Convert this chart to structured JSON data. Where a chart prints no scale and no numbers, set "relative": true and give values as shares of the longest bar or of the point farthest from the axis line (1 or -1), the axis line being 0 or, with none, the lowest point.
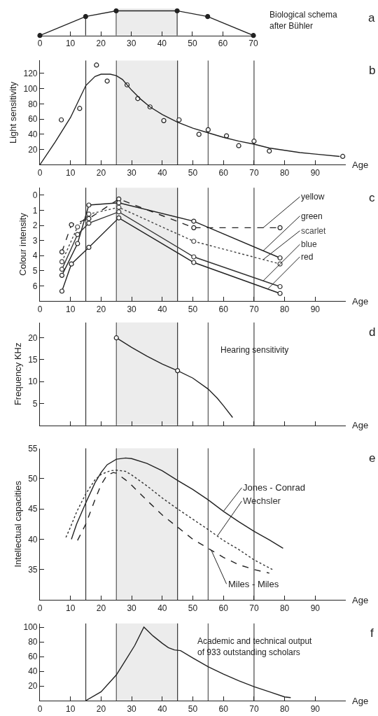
{
  "chart_data": [
    {
      "type": "line",
      "relative": true,
      "marker": "circle",
      "xlim": [
        0,
        70
      ],
      "xticks": [
        0,
        10,
        20,
        30,
        40,
        50,
        60,
        70
      ],
      "series": [
        {
          "color": "#222222",
          "x": [
            0,
            15,
            25,
            45,
            55,
            70
          ],
          "values": [
            0,
            0.77,
            1,
            1,
            0.77,
            0
          ]
        }
      ],
      "ref_lines": [
        {
          "axis": "x",
          "value": 15,
          "color": "#333333"
        },
        {
          "axis": "x",
          "value": 25,
          "color": "#555555"
        },
        {
          "axis": "x",
          "value": 45,
          "color": "#333333"
        }
      ],
      "bands": [
        {
          "axis": "x",
          "from": 25,
          "to": 45,
          "color": "#ececec"
        }
      ],
      "annotations": [
        "a",
        "Biological schema\nafter Bühler"
      ],
      "legend": false,
      "grid": false
    },
    {
      "type": "scatter",
      "xlabel": "Age",
      "ylabel": "Light sensitivity",
      "xlim": [
        0,
        100
      ],
      "xticks": [
        0,
        10,
        20,
        30,
        40,
        50,
        60,
        70,
        80,
        90
      ],
      "ylim": [
        0,
        137
      ],
      "yticks": [
        20,
        40,
        60,
        80,
        100,
        120
      ],
      "series": [
        {
          "type": "scatter",
          "marker": "circle",
          "color": "#222222",
          "x": [
            7,
            13,
            18.5,
            22,
            28.5,
            32,
            36,
            40.5,
            45.5,
            52,
            55,
            61,
            65,
            70,
            75,
            99
          ],
          "values": [
            59,
            74,
            131,
            110,
            105,
            87,
            76,
            58,
            59,
            40,
            46,
            38,
            25,
            31,
            18,
            11
          ]
        },
        {
          "type": "line",
          "color": "#222222",
          "x": [
            0,
            5,
            10,
            15,
            18,
            20,
            23,
            25,
            27,
            30,
            33,
            36,
            40,
            45,
            50,
            55,
            60,
            65,
            70,
            75,
            80,
            85,
            90,
            98
          ],
          "values": [
            0,
            30,
            62,
            104,
            116,
            119,
            119,
            117,
            112,
            98,
            86,
            76,
            66,
            56,
            48,
            42,
            36,
            31,
            27,
            22,
            19,
            16,
            14,
            11
          ]
        }
      ],
      "ref_lines": [
        {
          "axis": "x",
          "value": 15,
          "color": "#333333"
        },
        {
          "axis": "x",
          "value": 25,
          "color": "#555555"
        },
        {
          "axis": "x",
          "value": 45,
          "color": "#333333"
        },
        {
          "axis": "x",
          "value": 55,
          "color": "#555555"
        },
        {
          "axis": "x",
          "value": 70,
          "color": "#444444"
        }
      ],
      "bands": [
        {
          "axis": "x",
          "from": 25,
          "to": 45,
          "color": "#ececec"
        }
      ],
      "annotations": [
        "b"
      ],
      "legend": false,
      "grid": false
    },
    {
      "type": "line",
      "marker": "circle",
      "xlabel": "Age",
      "ylabel": "Colour intensity",
      "xlim": [
        0,
        100
      ],
      "xticks": [
        0,
        10,
        20,
        30,
        40,
        50,
        60,
        70,
        80,
        90
      ],
      "ylim": [
        7,
        -0.5
      ],
      "yticks": [
        0,
        1,
        2,
        3,
        4,
        5,
        6
      ],
      "series": [
        {
          "name": "yellow",
          "color": "#222222",
          "line_style": "dashed",
          "x": [
            7.2,
            10.3,
            16,
            25.8,
            50.3,
            78.5
          ],
          "values": [
            3.75,
            1.95,
            1.55,
            0.25,
            2.15,
            2.15
          ]
        },
        {
          "name": "green",
          "color": "#222222",
          "line_style": "solid",
          "x": [
            7.2,
            12.3,
            16,
            25.8,
            50.3,
            78.5
          ],
          "values": [
            5.3,
            3.2,
            0.65,
            0.5,
            1.72,
            4.15
          ]
        },
        {
          "name": "scarlet",
          "color": "#444444",
          "line_style": "dotted",
          "x": [
            7.2,
            12.3,
            16,
            25.8,
            50.3,
            78.5
          ],
          "values": [
            4.4,
            2.1,
            1.25,
            0.8,
            3.05,
            4.55
          ]
        },
        {
          "name": "blue",
          "color": "#333333",
          "line_style": "solid",
          "x": [
            7.2,
            12.3,
            16,
            25.8,
            50.3,
            78.5
          ],
          "values": [
            4.9,
            2.6,
            1.85,
            1.1,
            4.08,
            6.05
          ]
        },
        {
          "name": "red",
          "color": "#222222",
          "line_style": "solid",
          "x": [
            7.2,
            10.3,
            16,
            25.8,
            50.3,
            78.5
          ],
          "values": [
            6.35,
            4.55,
            3.45,
            1.5,
            4.45,
            6.5
          ]
        }
      ],
      "ref_lines": [
        {
          "axis": "x",
          "value": 15,
          "color": "#333333"
        },
        {
          "axis": "x",
          "value": 25,
          "color": "#555555"
        },
        {
          "axis": "x",
          "value": 45,
          "color": "#333333"
        },
        {
          "axis": "x",
          "value": 55,
          "color": "#555555"
        },
        {
          "axis": "x",
          "value": 70,
          "color": "#444444"
        }
      ],
      "bands": [
        {
          "axis": "x",
          "from": 25,
          "to": 45,
          "color": "#ececec"
        }
      ],
      "annotations": [
        "c"
      ],
      "legend": false,
      "grid": false
    },
    {
      "type": "line",
      "xlabel": "Age",
      "ylabel": "Frequency KHz",
      "xlim": [
        0,
        100
      ],
      "xticks": [
        0,
        10,
        20,
        30,
        40,
        50,
        60,
        70,
        80,
        90
      ],
      "ylim": [
        0,
        23.5
      ],
      "yticks": [
        5,
        10,
        15,
        20
      ],
      "tick_labels": "y",
      "series": [
        {
          "type": "line",
          "color": "#222222",
          "x": [
            25,
            30,
            35,
            40,
            45,
            50,
            55,
            58,
            60,
            63
          ],
          "values": [
            20,
            17.8,
            15.8,
            14,
            12.5,
            10.8,
            8.3,
            6.2,
            4.5,
            1.8
          ]
        },
        {
          "type": "scatter",
          "marker": "circle",
          "color": "#222222",
          "x": [
            25,
            45
          ],
          "values": [
            20,
            12.5
          ]
        }
      ],
      "ref_lines": [
        {
          "axis": "x",
          "value": 15,
          "color": "#333333"
        },
        {
          "axis": "x",
          "value": 25,
          "color": "#555555"
        },
        {
          "axis": "x",
          "value": 45,
          "color": "#333333"
        },
        {
          "axis": "x",
          "value": 55,
          "color": "#555555"
        },
        {
          "axis": "x",
          "value": 70,
          "color": "#444444"
        }
      ],
      "bands": [
        {
          "axis": "x",
          "from": 25,
          "to": 45,
          "color": "#ececec"
        }
      ],
      "annotations": [
        "d",
        "Hearing sensitivity"
      ],
      "legend": false,
      "grid": false
    },
    {
      "type": "line",
      "xlabel": "Age",
      "ylabel": "Intellectual capacities",
      "xlim": [
        0,
        100
      ],
      "xticks": [
        0,
        10,
        20,
        30,
        40,
        50,
        60,
        70,
        80,
        90
      ],
      "ylim": [
        30,
        55
      ],
      "yticks": [
        35,
        40,
        45,
        50,
        55
      ],
      "series": [
        {
          "name": "Jones - Conrad",
          "color": "#222222",
          "line_style": "solid",
          "x": [
            10.3,
            12,
            15,
            18,
            20,
            22,
            25,
            28,
            30,
            35,
            40,
            45,
            50,
            55,
            60,
            65,
            70,
            75,
            79.5
          ],
          "values": [
            40,
            42.5,
            46,
            49.3,
            51,
            52.3,
            53.2,
            53.4,
            53.3,
            52.5,
            51.3,
            49.7,
            48.2,
            46.5,
            44.6,
            42.9,
            41.3,
            39.9,
            38.5
          ]
        },
        {
          "name": "Wechsler",
          "color": "#333333",
          "line_style": "dotted",
          "x": [
            8.5,
            10,
            12,
            15,
            18,
            20,
            23,
            25,
            28,
            30,
            35,
            40,
            45,
            50,
            55,
            60,
            65,
            70,
            76
          ],
          "values": [
            40.3,
            42,
            44.5,
            47.5,
            49.8,
            50.7,
            51.3,
            51.4,
            51.2,
            50.6,
            48.8,
            46.8,
            45,
            43.3,
            41.6,
            39.8,
            38.3,
            36.6,
            35
          ]
        },
        {
          "name": "Miles - Miles",
          "color": "#222222",
          "line_style": "dashed",
          "x": [
            12.3,
            15,
            18,
            20,
            22,
            24,
            25,
            28,
            30,
            35,
            40,
            45,
            50,
            55,
            60,
            65,
            70,
            75
          ],
          "values": [
            39.8,
            42.5,
            46.5,
            49,
            50.6,
            51,
            50.9,
            49.8,
            48.9,
            46.4,
            44,
            42,
            40,
            38.5,
            37,
            35.8,
            35,
            34.4
          ]
        }
      ],
      "ref_lines": [
        {
          "axis": "x",
          "value": 15,
          "color": "#333333"
        },
        {
          "axis": "x",
          "value": 25,
          "color": "#555555"
        },
        {
          "axis": "x",
          "value": 45,
          "color": "#333333"
        },
        {
          "axis": "x",
          "value": 55,
          "color": "#555555"
        },
        {
          "axis": "x",
          "value": 70,
          "color": "#444444"
        }
      ],
      "bands": [
        {
          "axis": "x",
          "from": 25,
          "to": 45,
          "color": "#ececec"
        }
      ],
      "annotations": [
        "e"
      ],
      "legend": false,
      "grid": false
    },
    {
      "type": "line",
      "xlabel": "Age",
      "xlim": [
        0,
        100
      ],
      "xticks": [
        0,
        10,
        20,
        30,
        40,
        50,
        60,
        70,
        80,
        90
      ],
      "ylim": [
        0,
        105
      ],
      "yticks": [
        20,
        40,
        60,
        80,
        100
      ],
      "series": [
        {
          "color": "#222222",
          "x": [
            15,
            20,
            25,
            28,
            31,
            34,
            37,
            40,
            42,
            44,
            46,
            50,
            55,
            60,
            65,
            70,
            75,
            80,
            82
          ],
          "values": [
            0,
            12,
            35,
            55,
            75,
            100,
            88,
            78,
            72,
            69,
            68,
            58,
            46,
            36,
            27,
            19,
            12,
            5,
            4
          ]
        }
      ],
      "ref_lines": [
        {
          "axis": "x",
          "value": 15,
          "color": "#333333"
        },
        {
          "axis": "x",
          "value": 25,
          "color": "#555555"
        },
        {
          "axis": "x",
          "value": 45,
          "color": "#333333"
        },
        {
          "axis": "x",
          "value": 55,
          "color": "#555555"
        },
        {
          "axis": "x",
          "value": 70,
          "color": "#444444"
        }
      ],
      "bands": [
        {
          "axis": "x",
          "from": 25,
          "to": 45,
          "color": "#ececec"
        }
      ],
      "annotations": [
        "f",
        "Academic and technical output\nof 933 outstanding scholars"
      ],
      "legend": false,
      "grid": false
    }
  ]
}
